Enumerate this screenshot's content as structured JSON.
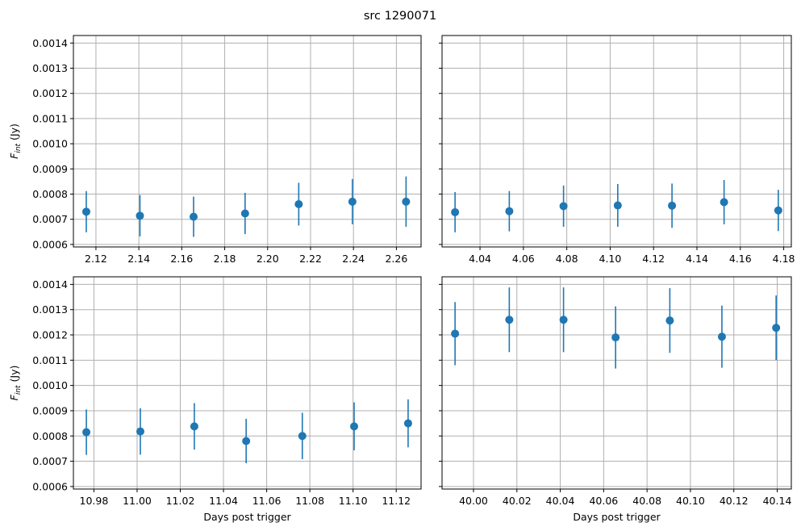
{
  "chart_data": {
    "title": "src 1290071",
    "type": "scatter",
    "marker_color": "#1f77b4",
    "grid": true,
    "sharey": true,
    "ylim": [
      0.00059,
      0.00143
    ],
    "yticks": [
      "0.0006",
      "0.0007",
      "0.0008",
      "0.0009",
      "0.0010",
      "0.0011",
      "0.0012",
      "0.0013",
      "0.0014"
    ],
    "ylabel_main": "F",
    "ylabel_sub": "int",
    "ylabel_unit": " (Jy)",
    "xlabel": "Days post trigger",
    "panels": [
      {
        "xlim": [
          2.1095,
          2.2715
        ],
        "xticks": [
          "2.12",
          "2.14",
          "2.16",
          "2.18",
          "2.20",
          "2.22",
          "2.24",
          "2.26"
        ],
        "x": [
          2.1155,
          2.1405,
          2.1655,
          2.1895,
          2.2145,
          2.2395,
          2.2645
        ],
        "y": [
          0.00073,
          0.000714,
          0.00071,
          0.000723,
          0.00076,
          0.00077,
          0.00077
        ],
        "yerr": [
          8.2e-05,
          8.2e-05,
          8e-05,
          8.2e-05,
          8.5e-05,
          9e-05,
          0.0001
        ]
      },
      {
        "xlim": [
          4.0225,
          4.1835
        ],
        "xticks": [
          "4.04",
          "4.06",
          "4.08",
          "4.10",
          "4.12",
          "4.14",
          "4.16",
          "4.18"
        ],
        "x": [
          4.0285,
          4.0535,
          4.0785,
          4.1035,
          4.1285,
          4.1525,
          4.1775
        ],
        "y": [
          0.000728,
          0.000732,
          0.000752,
          0.000755,
          0.000754,
          0.000768,
          0.000735
        ],
        "yerr": [
          8e-05,
          8e-05,
          8.2e-05,
          8.5e-05,
          8.8e-05,
          8.8e-05,
          8.2e-05
        ]
      },
      {
        "xlim": [
          10.9705,
          11.1315
        ],
        "xticks": [
          "10.98",
          "11.00",
          "11.02",
          "11.04",
          "11.06",
          "11.08",
          "11.10",
          "11.12"
        ],
        "x": [
          10.9765,
          11.0015,
          11.0265,
          11.0505,
          11.0765,
          11.1005,
          11.1255
        ],
        "y": [
          0.000815,
          0.000818,
          0.000838,
          0.00078,
          0.0008,
          0.000838,
          0.00085
        ],
        "yerr": [
          9e-05,
          9.2e-05,
          9.2e-05,
          8.8e-05,
          9.2e-05,
          9.5e-05,
          9.5e-05
        ]
      },
      {
        "xlim": [
          39.9855,
          40.1465
        ],
        "xticks": [
          "40.00",
          "40.02",
          "40.04",
          "40.06",
          "40.08",
          "40.10",
          "40.12",
          "40.14"
        ],
        "x": [
          39.9915,
          40.0165,
          40.0415,
          40.0655,
          40.0905,
          40.1145,
          40.1395
        ],
        "y": [
          0.001205,
          0.00126,
          0.00126,
          0.00119,
          0.001257,
          0.001193,
          0.001228
        ],
        "yerr": [
          0.000125,
          0.000128,
          0.000128,
          0.000123,
          0.000128,
          0.000123,
          0.000128
        ]
      }
    ]
  }
}
